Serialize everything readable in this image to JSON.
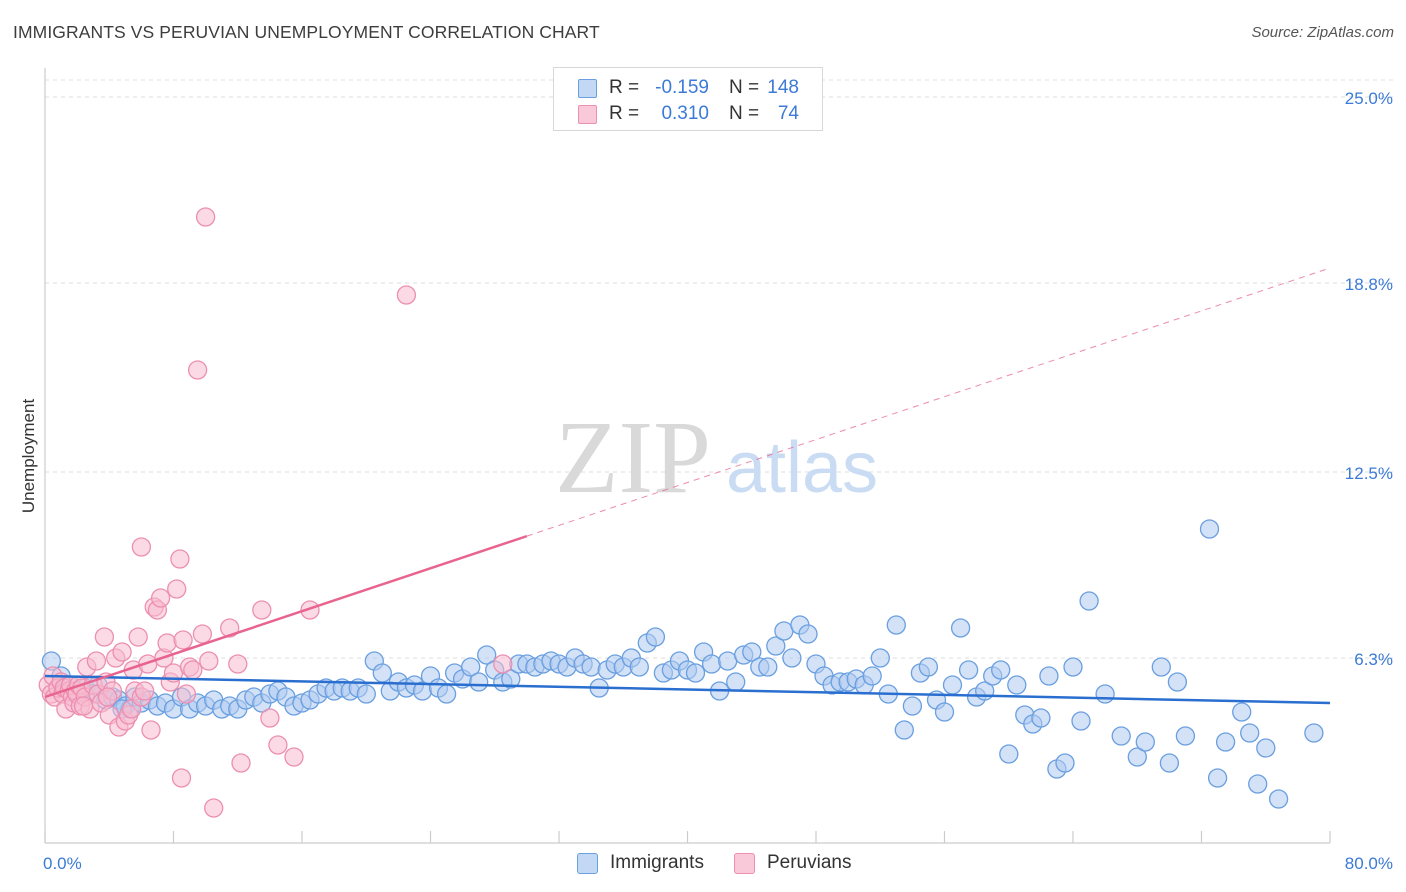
{
  "title": "IMMIGRANTS VS PERUVIAN UNEMPLOYMENT CORRELATION CHART",
  "source": "Source: ZipAtlas.com",
  "watermark": {
    "zip": "ZIP",
    "atlas": "atlas"
  },
  "legend": {
    "r_label": "R =",
    "n_label": "N =",
    "immigrants": {
      "r": "-0.159",
      "n": "148"
    },
    "peruvians": {
      "r": "0.310",
      "n": "74"
    }
  },
  "colors": {
    "immigrants_fill": "#aecbf0",
    "immigrants_stroke": "#6a9fe0",
    "immigrants_line": "#2a6fcf",
    "peruvians_fill": "#f7bcd0",
    "peruvians_stroke": "#ec8fb0",
    "peruvians_line": "#e8648f",
    "axis_text": "#3b7ad6"
  },
  "chart_data": {
    "type": "scatter",
    "title": "IMMIGRANTS VS PERUVIAN UNEMPLOYMENT CORRELATION CHART",
    "xlabel": "",
    "ylabel": "Unemployment",
    "xlim": [
      0,
      80
    ],
    "ylim": [
      0,
      26
    ],
    "x_tick_labels": [
      "0.0%",
      "80.0%"
    ],
    "y_ticks": [
      6.3,
      12.5,
      18.8,
      25.0
    ],
    "y_tick_labels": [
      "6.3%",
      "12.5%",
      "18.8%",
      "25.0%"
    ],
    "grid": true,
    "series": [
      {
        "name": "Immigrants",
        "r": -0.159,
        "n": 148,
        "trend": {
          "x0": 0,
          "y0": 5.7,
          "x1": 80,
          "y1": 4.8,
          "dashed_from": null
        },
        "points": [
          [
            0.4,
            6.2
          ],
          [
            1.0,
            5.7
          ],
          [
            1.5,
            5.4
          ],
          [
            2.0,
            5.2
          ],
          [
            2.5,
            5.3
          ],
          [
            3.0,
            5.1
          ],
          [
            3.3,
            5.4
          ],
          [
            3.8,
            4.9
          ],
          [
            4.2,
            5.0
          ],
          [
            4.6,
            4.9
          ],
          [
            5.0,
            4.7
          ],
          [
            5.3,
            4.6
          ],
          [
            5.6,
            5.0
          ],
          [
            6.0,
            4.8
          ],
          [
            6.5,
            4.9
          ],
          [
            7.0,
            4.7
          ],
          [
            7.5,
            4.8
          ],
          [
            8.0,
            4.6
          ],
          [
            8.5,
            5.0
          ],
          [
            9.0,
            4.6
          ],
          [
            9.5,
            4.8
          ],
          [
            10.0,
            4.7
          ],
          [
            10.5,
            4.9
          ],
          [
            11.0,
            4.6
          ],
          [
            11.5,
            4.7
          ],
          [
            12.0,
            4.6
          ],
          [
            12.5,
            4.9
          ],
          [
            13.0,
            5.0
          ],
          [
            13.5,
            4.8
          ],
          [
            14.0,
            5.1
          ],
          [
            14.5,
            5.2
          ],
          [
            15.0,
            5.0
          ],
          [
            15.5,
            4.7
          ],
          [
            16.0,
            4.8
          ],
          [
            16.5,
            4.9
          ],
          [
            17.0,
            5.1
          ],
          [
            17.5,
            5.3
          ],
          [
            18.0,
            5.2
          ],
          [
            18.5,
            5.3
          ],
          [
            19.0,
            5.2
          ],
          [
            19.5,
            5.3
          ],
          [
            20.0,
            5.1
          ],
          [
            20.5,
            6.2
          ],
          [
            21.0,
            5.8
          ],
          [
            21.5,
            5.2
          ],
          [
            22.0,
            5.5
          ],
          [
            22.5,
            5.3
          ],
          [
            23.0,
            5.4
          ],
          [
            23.5,
            5.2
          ],
          [
            24.0,
            5.7
          ],
          [
            24.5,
            5.3
          ],
          [
            25.0,
            5.1
          ],
          [
            25.5,
            5.8
          ],
          [
            26.0,
            5.6
          ],
          [
            26.5,
            6.0
          ],
          [
            27.0,
            5.5
          ],
          [
            27.5,
            6.4
          ],
          [
            28.0,
            5.9
          ],
          [
            28.5,
            5.5
          ],
          [
            29.0,
            5.6
          ],
          [
            29.5,
            6.1
          ],
          [
            30.0,
            6.1
          ],
          [
            30.5,
            6.0
          ],
          [
            31.0,
            6.1
          ],
          [
            31.5,
            6.2
          ],
          [
            32.0,
            6.1
          ],
          [
            32.5,
            6.0
          ],
          [
            33.0,
            6.3
          ],
          [
            33.5,
            6.1
          ],
          [
            34.0,
            6.0
          ],
          [
            34.5,
            5.3
          ],
          [
            35.0,
            5.9
          ],
          [
            35.5,
            6.1
          ],
          [
            36.0,
            6.0
          ],
          [
            36.5,
            6.3
          ],
          [
            37.0,
            6.0
          ],
          [
            37.5,
            6.8
          ],
          [
            38.0,
            7.0
          ],
          [
            38.5,
            5.8
          ],
          [
            39.0,
            5.9
          ],
          [
            39.5,
            6.2
          ],
          [
            40.0,
            5.9
          ],
          [
            40.5,
            5.8
          ],
          [
            41.0,
            6.5
          ],
          [
            41.5,
            6.1
          ],
          [
            42.0,
            5.2
          ],
          [
            42.5,
            6.2
          ],
          [
            43.0,
            5.5
          ],
          [
            43.5,
            6.4
          ],
          [
            44.0,
            6.5
          ],
          [
            44.5,
            6.0
          ],
          [
            45.0,
            6.0
          ],
          [
            45.5,
            6.7
          ],
          [
            46.0,
            7.2
          ],
          [
            46.5,
            6.3
          ],
          [
            47.0,
            7.4
          ],
          [
            47.5,
            7.1
          ],
          [
            48.0,
            6.1
          ],
          [
            48.5,
            5.7
          ],
          [
            49.0,
            5.4
          ],
          [
            49.5,
            5.5
          ],
          [
            50.0,
            5.5
          ],
          [
            50.5,
            5.6
          ],
          [
            51.0,
            5.4
          ],
          [
            51.5,
            5.7
          ],
          [
            52.0,
            6.3
          ],
          [
            52.5,
            5.1
          ],
          [
            53.0,
            7.4
          ],
          [
            53.5,
            3.9
          ],
          [
            54.0,
            4.7
          ],
          [
            54.5,
            5.8
          ],
          [
            55.0,
            6.0
          ],
          [
            55.5,
            4.9
          ],
          [
            56.0,
            4.5
          ],
          [
            56.5,
            5.4
          ],
          [
            57.0,
            7.3
          ],
          [
            57.5,
            5.9
          ],
          [
            58.0,
            5.0
          ],
          [
            58.5,
            5.2
          ],
          [
            59.0,
            5.7
          ],
          [
            59.5,
            5.9
          ],
          [
            60.0,
            3.1
          ],
          [
            60.5,
            5.4
          ],
          [
            61.0,
            4.4
          ],
          [
            61.5,
            4.1
          ],
          [
            62.0,
            4.3
          ],
          [
            62.5,
            5.7
          ],
          [
            63.0,
            2.6
          ],
          [
            63.5,
            2.8
          ],
          [
            64.0,
            6.0
          ],
          [
            64.5,
            4.2
          ],
          [
            65.0,
            8.2
          ],
          [
            66.0,
            5.1
          ],
          [
            67.0,
            3.7
          ],
          [
            68.0,
            3.0
          ],
          [
            68.5,
            3.5
          ],
          [
            69.5,
            6.0
          ],
          [
            70.0,
            2.8
          ],
          [
            70.5,
            5.5
          ],
          [
            71.0,
            3.7
          ],
          [
            72.5,
            10.6
          ],
          [
            73.0,
            2.3
          ],
          [
            73.5,
            3.5
          ],
          [
            74.5,
            4.5
          ],
          [
            75.0,
            3.8
          ],
          [
            75.5,
            2.1
          ],
          [
            76.0,
            3.3
          ],
          [
            76.8,
            1.6
          ],
          [
            79.0,
            3.8
          ],
          [
            4.8,
            4.6
          ]
        ]
      },
      {
        "name": "Peruvians",
        "r": 0.31,
        "n": 74,
        "trend": {
          "x0": 0,
          "y0": 5.0,
          "x1": 80,
          "y1": 19.3,
          "solid_until": 30
        },
        "points": [
          [
            0.2,
            5.4
          ],
          [
            0.4,
            5.1
          ],
          [
            0.5,
            5.7
          ],
          [
            0.6,
            5.0
          ],
          [
            0.8,
            5.3
          ],
          [
            1.0,
            5.5
          ],
          [
            1.1,
            5.1
          ],
          [
            1.2,
            5.3
          ],
          [
            1.3,
            4.6
          ],
          [
            1.5,
            5.2
          ],
          [
            1.6,
            5.4
          ],
          [
            1.7,
            5.0
          ],
          [
            1.8,
            4.8
          ],
          [
            1.9,
            5.2
          ],
          [
            2.0,
            5.1
          ],
          [
            2.1,
            5.4
          ],
          [
            2.2,
            4.7
          ],
          [
            2.3,
            5.3
          ],
          [
            2.5,
            5.0
          ],
          [
            2.6,
            6.0
          ],
          [
            2.8,
            4.6
          ],
          [
            3.0,
            5.4
          ],
          [
            3.2,
            6.2
          ],
          [
            3.3,
            5.1
          ],
          [
            3.5,
            4.8
          ],
          [
            3.7,
            7.0
          ],
          [
            3.8,
            5.5
          ],
          [
            4.0,
            4.4
          ],
          [
            4.2,
            5.2
          ],
          [
            4.4,
            6.3
          ],
          [
            4.6,
            4.0
          ],
          [
            4.8,
            6.5
          ],
          [
            5.0,
            4.2
          ],
          [
            5.2,
            4.4
          ],
          [
            5.4,
            4.6
          ],
          [
            5.5,
            5.9
          ],
          [
            5.6,
            5.2
          ],
          [
            5.8,
            7.0
          ],
          [
            6.0,
            5.0
          ],
          [
            6.2,
            5.2
          ],
          [
            6.4,
            6.1
          ],
          [
            6.6,
            3.9
          ],
          [
            6.8,
            8.0
          ],
          [
            7.0,
            7.9
          ],
          [
            7.2,
            8.3
          ],
          [
            7.4,
            6.3
          ],
          [
            7.6,
            6.8
          ],
          [
            7.8,
            5.5
          ],
          [
            8.0,
            5.8
          ],
          [
            8.2,
            8.6
          ],
          [
            8.4,
            9.6
          ],
          [
            8.6,
            6.9
          ],
          [
            8.8,
            5.1
          ],
          [
            9.0,
            6.0
          ],
          [
            9.2,
            5.9
          ],
          [
            9.5,
            15.9
          ],
          [
            9.8,
            7.1
          ],
          [
            10.0,
            21.0
          ],
          [
            10.2,
            6.2
          ],
          [
            10.5,
            1.3
          ],
          [
            11.5,
            7.3
          ],
          [
            12.0,
            6.1
          ],
          [
            12.2,
            2.8
          ],
          [
            13.5,
            7.9
          ],
          [
            14.0,
            4.3
          ],
          [
            14.5,
            3.4
          ],
          [
            15.5,
            3.0
          ],
          [
            16.5,
            7.9
          ],
          [
            22.5,
            18.4
          ],
          [
            28.5,
            6.1
          ],
          [
            8.5,
            2.3
          ],
          [
            6.0,
            10.0
          ],
          [
            2.4,
            4.7
          ],
          [
            3.9,
            5.0
          ]
        ]
      }
    ]
  }
}
